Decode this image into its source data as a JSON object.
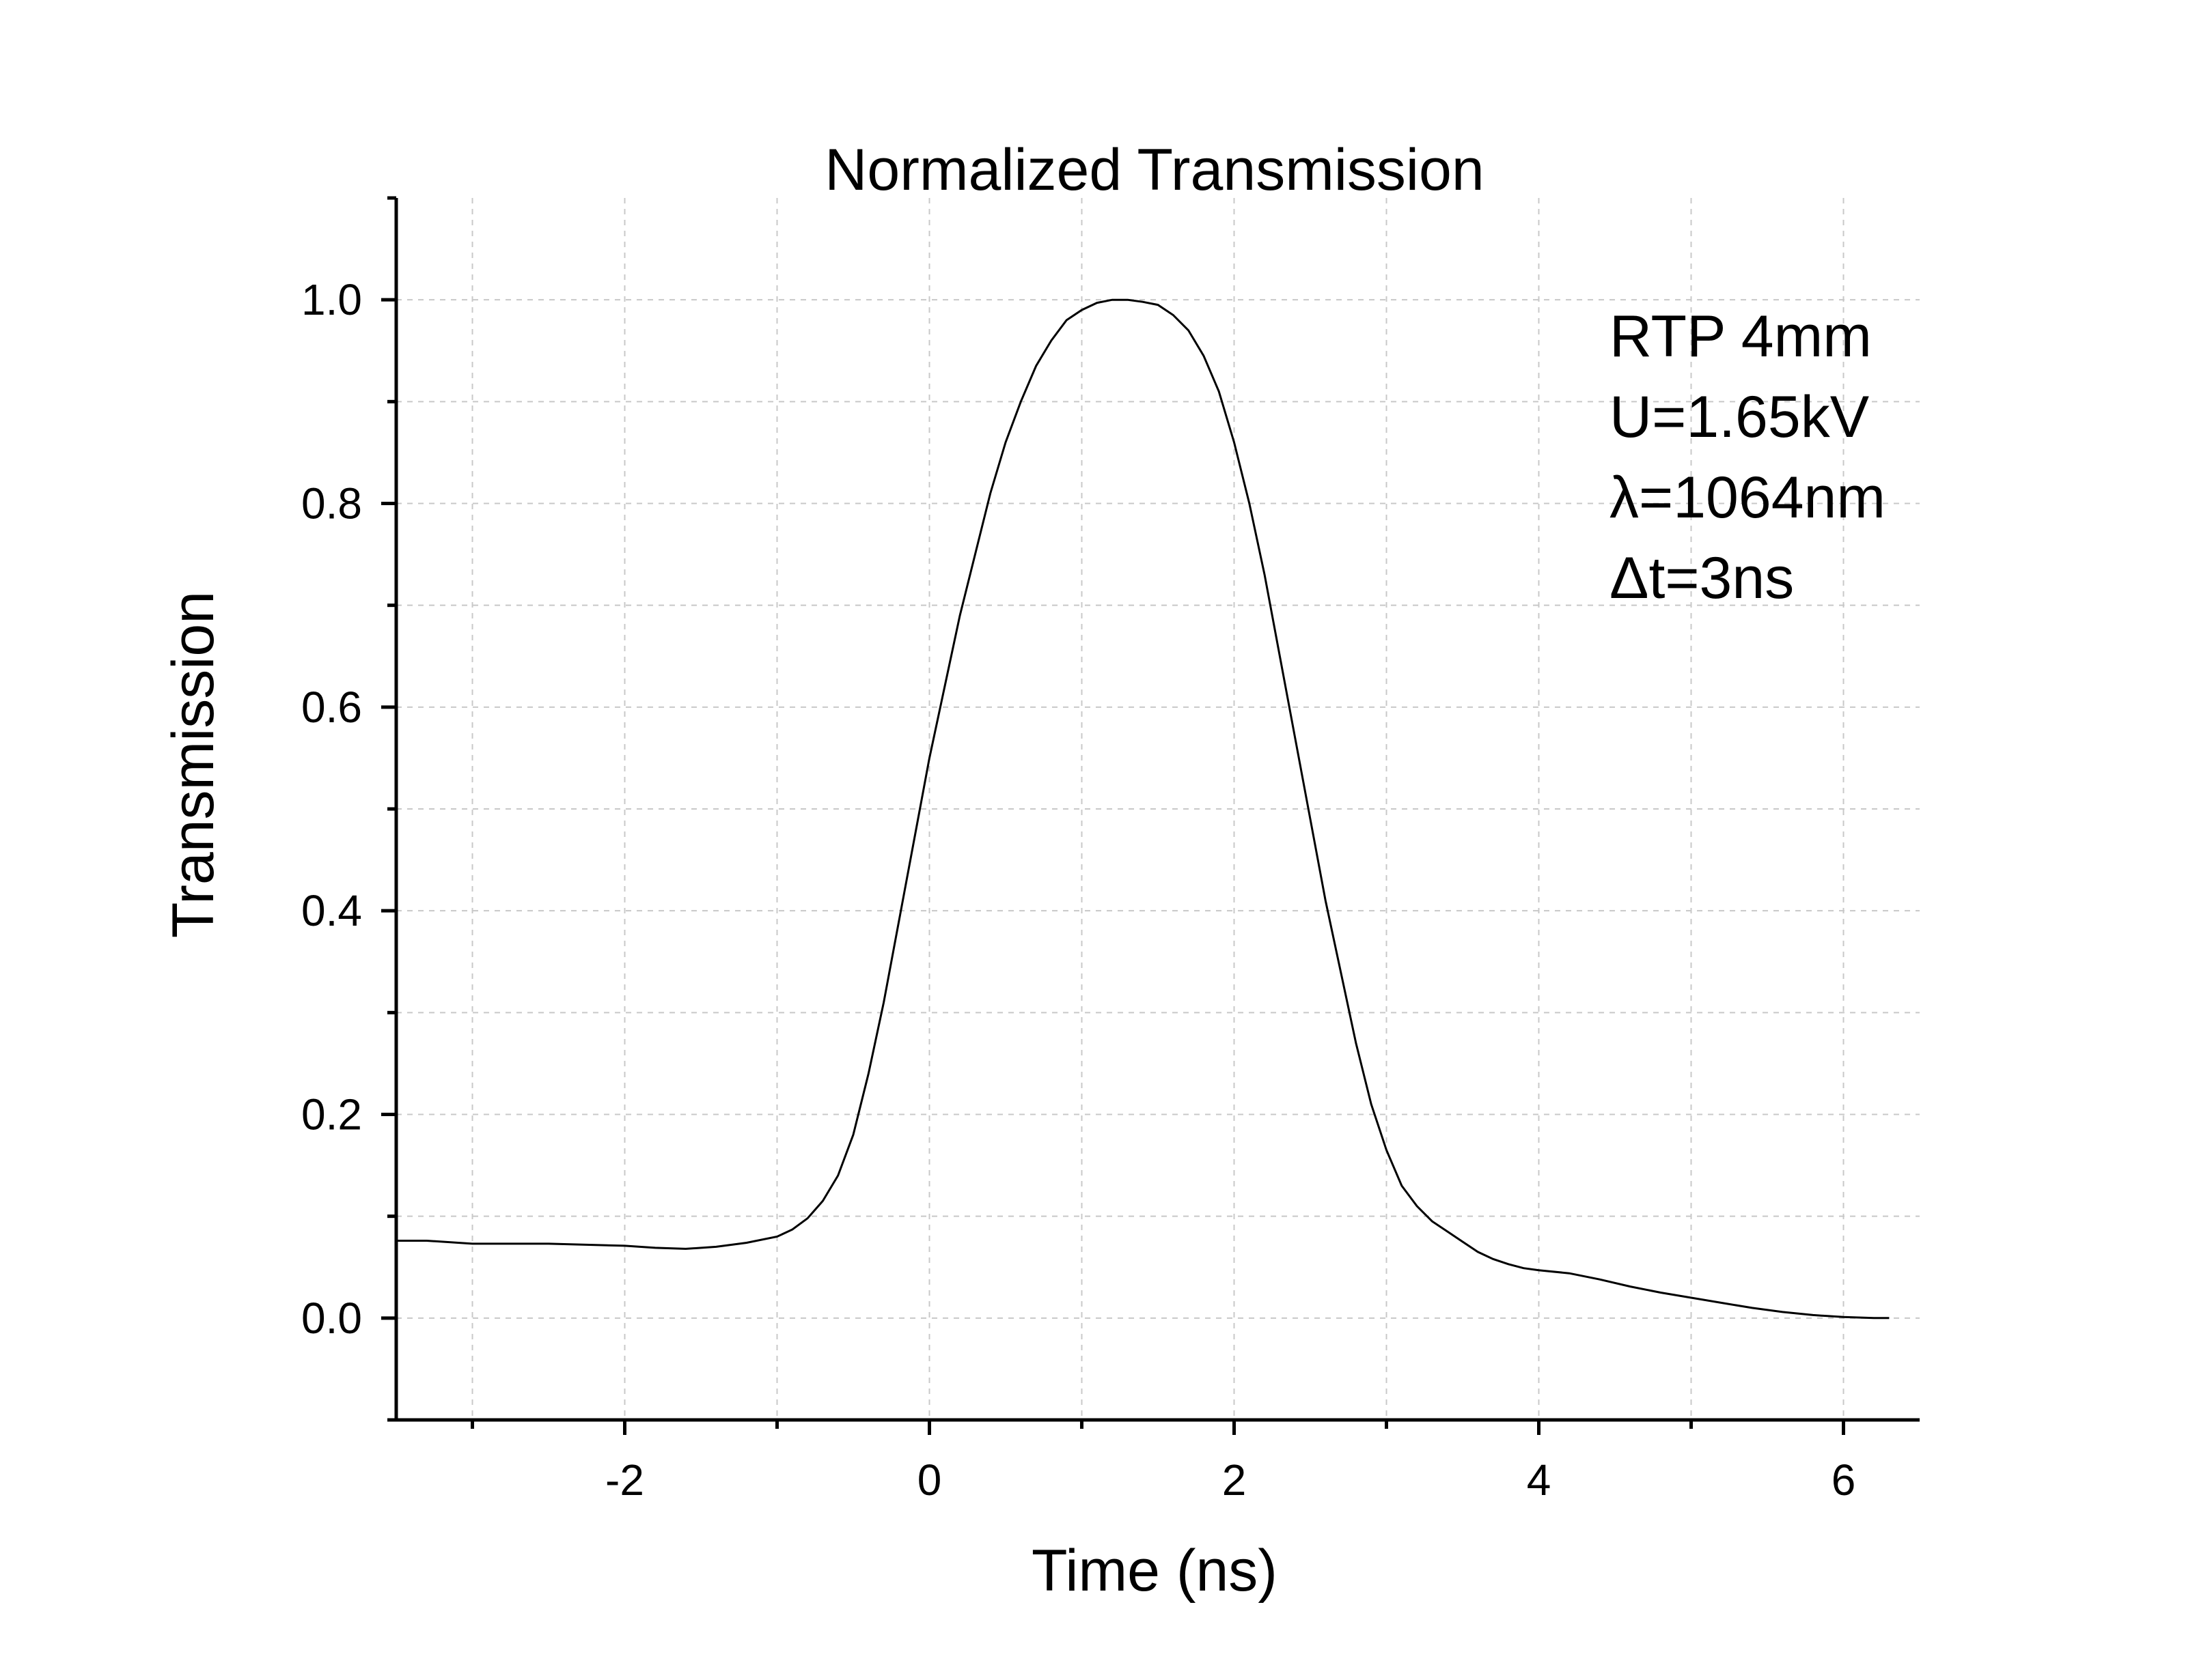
{
  "chart_data": {
    "type": "line",
    "title": "Normalized Transmission",
    "xlabel": "Time (ns)",
    "ylabel": "Transmission",
    "xlim": [
      -3.5,
      6.5
    ],
    "ylim": [
      -0.1,
      1.1
    ],
    "grid": true,
    "xticks": [
      -2,
      0,
      2,
      4,
      6
    ],
    "xtick_labels": [
      "-2",
      "0",
      "2",
      "4",
      "6"
    ],
    "xminor": [
      -3,
      -1,
      1,
      3,
      5
    ],
    "yticks": [
      0.0,
      0.2,
      0.4,
      0.6,
      0.8,
      1.0
    ],
    "ytick_labels": [
      "0.0",
      "0.2",
      "0.4",
      "0.6",
      "0.8",
      "1.0"
    ],
    "yminor": [
      -0.1,
      0.1,
      0.3,
      0.5,
      0.7,
      0.9,
      1.1
    ],
    "annotations": [
      "RTP 4mm",
      "U=1.65kV",
      "λ=1064nm",
      "Δt=3ns"
    ],
    "series": [
      {
        "color": "#000000",
        "x": [
          -3.5,
          -3.3,
          -3.0,
          -2.7,
          -2.5,
          -2.0,
          -1.8,
          -1.6,
          -1.4,
          -1.2,
          -1.0,
          -0.9,
          -0.8,
          -0.7,
          -0.6,
          -0.5,
          -0.4,
          -0.3,
          -0.2,
          -0.1,
          0.0,
          0.1,
          0.2,
          0.3,
          0.4,
          0.5,
          0.6,
          0.7,
          0.8,
          0.9,
          1.0,
          1.1,
          1.2,
          1.3,
          1.4,
          1.5,
          1.6,
          1.7,
          1.8,
          1.9,
          2.0,
          2.1,
          2.2,
          2.3,
          2.4,
          2.5,
          2.6,
          2.7,
          2.8,
          2.9,
          3.0,
          3.1,
          3.2,
          3.3,
          3.4,
          3.5,
          3.6,
          3.7,
          3.8,
          3.9,
          4.0,
          4.2,
          4.4,
          4.6,
          4.8,
          5.0,
          5.2,
          5.4,
          5.6,
          5.8,
          6.0,
          6.2,
          6.3
        ],
        "y": [
          0.076,
          0.076,
          0.073,
          0.073,
          0.073,
          0.071,
          0.069,
          0.068,
          0.07,
          0.074,
          0.08,
          0.087,
          0.098,
          0.115,
          0.14,
          0.18,
          0.24,
          0.31,
          0.39,
          0.47,
          0.55,
          0.62,
          0.69,
          0.75,
          0.81,
          0.86,
          0.9,
          0.935,
          0.96,
          0.98,
          0.99,
          0.997,
          1.0,
          1.0,
          0.998,
          0.995,
          0.985,
          0.97,
          0.945,
          0.91,
          0.86,
          0.8,
          0.73,
          0.65,
          0.57,
          0.49,
          0.41,
          0.34,
          0.27,
          0.21,
          0.165,
          0.13,
          0.11,
          0.095,
          0.085,
          0.075,
          0.065,
          0.058,
          0.053,
          0.049,
          0.047,
          0.044,
          0.038,
          0.031,
          0.025,
          0.02,
          0.015,
          0.01,
          0.006,
          0.003,
          0.001,
          0.0,
          0.0
        ]
      }
    ]
  }
}
